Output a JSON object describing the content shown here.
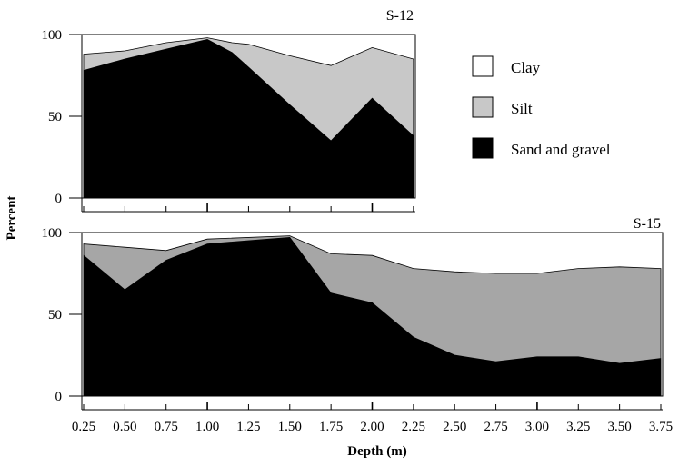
{
  "chart_data": [
    {
      "type": "area",
      "stacked": true,
      "panel_label": "S-12",
      "x": [
        0.25,
        0.5,
        0.75,
        1.0,
        1.15,
        1.25,
        1.5,
        1.75,
        2.0,
        2.25
      ],
      "series": [
        {
          "name": "Sand and gravel",
          "color": "#000000",
          "values": [
            78,
            85,
            91,
            97,
            89,
            80,
            57,
            35,
            61,
            38
          ]
        },
        {
          "name": "Silt",
          "color": "#c8c8c8",
          "values": [
            10,
            5,
            4,
            1,
            6,
            14,
            30,
            46,
            31,
            47
          ]
        },
        {
          "name": "Clay",
          "color": "#ffffff",
          "values": [
            12,
            10,
            5,
            2,
            5,
            6,
            13,
            19,
            8,
            15
          ]
        }
      ],
      "boundaries": {
        "sand_top": [
          78,
          85,
          91,
          97,
          89,
          80,
          57,
          35,
          61,
          38
        ],
        "silt_top": [
          88,
          90,
          95,
          98,
          95,
          94,
          87,
          81,
          92,
          85
        ]
      },
      "xlim": [
        0.25,
        2.25
      ],
      "ylim": [
        0,
        100
      ],
      "y_ticks": [
        "0",
        "50",
        "100"
      ]
    },
    {
      "type": "area",
      "stacked": true,
      "panel_label": "S-15",
      "x": [
        0.25,
        0.5,
        0.75,
        1.0,
        1.5,
        1.75,
        2.0,
        2.25,
        2.5,
        2.75,
        3.0,
        3.25,
        3.5,
        3.75
      ],
      "series": [
        {
          "name": "Sand and gravel",
          "color": "#000000",
          "values": [
            86,
            65,
            83,
            93,
            97,
            63,
            57,
            36,
            25,
            21,
            24,
            24,
            20,
            23
          ]
        },
        {
          "name": "Silt",
          "color": "#a6a6a6",
          "values": [
            7,
            26,
            6,
            3,
            1,
            24,
            29,
            42,
            51,
            54,
            51,
            54,
            59,
            55
          ]
        },
        {
          "name": "Clay",
          "color": "#ffffff",
          "values": [
            7,
            9,
            11,
            4,
            2,
            13,
            14,
            22,
            24,
            25,
            25,
            22,
            21,
            22
          ]
        }
      ],
      "boundaries": {
        "sand_top": [
          86,
          65,
          83,
          93,
          97,
          63,
          57,
          36,
          25,
          21,
          24,
          24,
          20,
          23
        ],
        "silt_top": [
          93,
          91,
          89,
          96,
          98,
          87,
          86,
          78,
          76,
          75,
          75,
          78,
          79,
          78
        ]
      },
      "xlim": [
        0.25,
        3.75
      ],
      "ylim": [
        0,
        100
      ],
      "y_ticks": [
        "0",
        "50",
        "100"
      ]
    }
  ],
  "x_tick_labels": [
    "0.25",
    "0.50",
    "0.75",
    "1.00",
    "1.25",
    "1.50",
    "1.75",
    "2.00",
    "2.25",
    "2.50",
    "2.75",
    "3.00",
    "3.25",
    "3.50",
    "3.75"
  ],
  "xlabel": "Depth (m)",
  "ylabel": "Percent",
  "legend": {
    "placement": "right of upper panel",
    "items": [
      {
        "label": "Clay",
        "color": "#ffffff"
      },
      {
        "label": "Silt",
        "color": "#c8c8c8"
      },
      {
        "label": "Sand and gravel",
        "color": "#000000"
      }
    ]
  }
}
